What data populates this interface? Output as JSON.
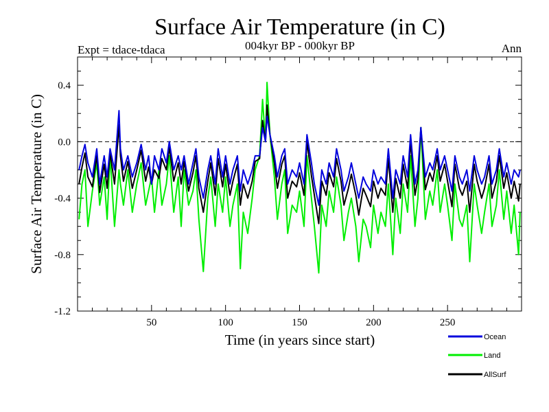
{
  "chart_data": {
    "type": "line",
    "title": "Surface Air Temperature (in C)",
    "subtitle": "004kyr BP - 000kyr BP",
    "left_label": "Expt = tdace-tdaca",
    "right_label": "Ann",
    "xlabel": "Time (in years since start)",
    "ylabel": "Surface Air Temperature (in C)",
    "xlim": [
      0,
      300
    ],
    "ylim": [
      -1.2,
      0.6
    ],
    "xticks_major": [
      50,
      100,
      150,
      200,
      250
    ],
    "xtick_labels": [
      "50",
      "100",
      "150",
      "200",
      "250"
    ],
    "yticks_major": [
      -1.2,
      -0.8,
      -0.4,
      0.0,
      0.4
    ],
    "ytick_labels": [
      "-1.2",
      "-0.8",
      "-0.4",
      "0.0",
      "0.4"
    ],
    "reference_line": 0.0,
    "legend_position": "bottom-right, below plot",
    "series": [
      {
        "name": "Ocean",
        "color": "#0000dd",
        "x": [
          1,
          3,
          5,
          7,
          10,
          13,
          15,
          18,
          20,
          22,
          25,
          28,
          29,
          31,
          34,
          37,
          40,
          43,
          46,
          48,
          50,
          52,
          55,
          57,
          60,
          62,
          65,
          68,
          70,
          72,
          75,
          78,
          80,
          82,
          85,
          88,
          90,
          93,
          95,
          98,
          100,
          103,
          105,
          108,
          110,
          112,
          115,
          118,
          120,
          123,
          125,
          127,
          128,
          130,
          133,
          135,
          138,
          140,
          142,
          145,
          148,
          150,
          153,
          155,
          158,
          160,
          163,
          165,
          168,
          170,
          173,
          175,
          178,
          180,
          183,
          185,
          188,
          190,
          193,
          195,
          198,
          200,
          203,
          205,
          208,
          210,
          213,
          215,
          218,
          220,
          223,
          225,
          228,
          230,
          232,
          235,
          238,
          240,
          243,
          245,
          248,
          250,
          253,
          255,
          258,
          260,
          263,
          265,
          268,
          270,
          273,
          275,
          278,
          280,
          283,
          285,
          288,
          290,
          293,
          295,
          298,
          299
        ],
        "values": [
          -0.2,
          -0.1,
          -0.02,
          -0.15,
          -0.25,
          -0.05,
          -0.3,
          -0.1,
          -0.25,
          -0.05,
          -0.2,
          0.22,
          -0.05,
          -0.2,
          -0.1,
          -0.25,
          -0.15,
          -0.02,
          -0.2,
          -0.1,
          -0.3,
          -0.1,
          -0.2,
          -0.05,
          -0.15,
          0.0,
          -0.2,
          -0.1,
          -0.2,
          -0.1,
          -0.3,
          -0.15,
          -0.05,
          -0.25,
          -0.4,
          -0.2,
          -0.1,
          -0.3,
          -0.05,
          -0.25,
          -0.1,
          -0.3,
          -0.2,
          -0.1,
          -0.35,
          -0.2,
          -0.3,
          -0.2,
          -0.1,
          -0.1,
          0.1,
          0.0,
          0.18,
          0.05,
          -0.1,
          -0.25,
          -0.1,
          -0.05,
          -0.3,
          -0.2,
          -0.25,
          -0.15,
          -0.3,
          0.05,
          -0.15,
          -0.3,
          -0.45,
          -0.2,
          -0.3,
          -0.15,
          -0.25,
          -0.05,
          -0.2,
          -0.35,
          -0.25,
          -0.15,
          -0.3,
          -0.4,
          -0.25,
          -0.3,
          -0.35,
          -0.2,
          -0.3,
          -0.25,
          -0.3,
          -0.05,
          -0.4,
          -0.2,
          -0.3,
          -0.1,
          -0.25,
          0.05,
          -0.3,
          -0.2,
          0.1,
          -0.25,
          -0.15,
          -0.2,
          -0.05,
          -0.2,
          -0.1,
          -0.2,
          -0.35,
          -0.1,
          -0.25,
          -0.3,
          -0.2,
          -0.35,
          -0.1,
          -0.2,
          -0.3,
          -0.25,
          -0.1,
          -0.3,
          -0.2,
          -0.05,
          -0.25,
          -0.15,
          -0.3,
          -0.2,
          -0.25,
          -0.2
        ]
      },
      {
        "name": "Land",
        "color": "#00ee00",
        "x": [
          1,
          3,
          5,
          7,
          10,
          13,
          15,
          18,
          20,
          22,
          25,
          28,
          29,
          31,
          34,
          37,
          40,
          43,
          46,
          48,
          50,
          52,
          55,
          57,
          60,
          62,
          65,
          68,
          70,
          72,
          75,
          78,
          80,
          82,
          85,
          88,
          90,
          93,
          95,
          98,
          100,
          103,
          105,
          108,
          110,
          112,
          115,
          118,
          120,
          123,
          125,
          127,
          128,
          130,
          133,
          135,
          138,
          140,
          142,
          145,
          148,
          150,
          153,
          155,
          158,
          160,
          163,
          165,
          168,
          170,
          173,
          175,
          178,
          180,
          183,
          185,
          188,
          190,
          193,
          195,
          198,
          200,
          203,
          205,
          208,
          210,
          213,
          215,
          218,
          220,
          223,
          225,
          228,
          230,
          232,
          235,
          238,
          240,
          243,
          245,
          248,
          250,
          253,
          255,
          258,
          260,
          263,
          265,
          268,
          270,
          273,
          275,
          278,
          280,
          283,
          285,
          288,
          290,
          293,
          295,
          298,
          299
        ],
        "values": [
          -0.55,
          -0.3,
          -0.2,
          -0.6,
          -0.35,
          -0.15,
          -0.45,
          -0.25,
          -0.55,
          -0.1,
          -0.6,
          -0.2,
          -0.3,
          -0.45,
          -0.2,
          -0.5,
          -0.3,
          -0.15,
          -0.45,
          -0.35,
          -0.25,
          -0.5,
          -0.2,
          -0.45,
          -0.3,
          -0.1,
          -0.5,
          -0.25,
          -0.6,
          -0.2,
          -0.45,
          -0.35,
          -0.2,
          -0.55,
          -0.92,
          -0.4,
          -0.25,
          -0.6,
          -0.3,
          -0.5,
          -0.25,
          -0.6,
          -0.45,
          -0.3,
          -0.9,
          -0.5,
          -0.65,
          -0.4,
          -0.2,
          -0.1,
          0.3,
          0.0,
          0.42,
          0.05,
          -0.25,
          -0.55,
          -0.3,
          -0.2,
          -0.65,
          -0.45,
          -0.5,
          -0.35,
          -0.6,
          -0.1,
          -0.4,
          -0.6,
          -0.93,
          -0.45,
          -0.6,
          -0.35,
          -0.5,
          -0.25,
          -0.45,
          -0.7,
          -0.5,
          -0.4,
          -0.6,
          -0.85,
          -0.55,
          -0.6,
          -0.75,
          -0.45,
          -0.65,
          -0.5,
          -0.6,
          -0.3,
          -0.8,
          -0.4,
          -0.65,
          -0.3,
          -0.5,
          -0.1,
          -0.6,
          -0.4,
          0.1,
          -0.55,
          -0.35,
          -0.45,
          -0.2,
          -0.5,
          -0.3,
          -0.45,
          -0.7,
          -0.3,
          -0.55,
          -0.6,
          -0.45,
          -0.85,
          -0.3,
          -0.45,
          -0.65,
          -0.5,
          -0.3,
          -0.6,
          -0.45,
          -0.2,
          -0.55,
          -0.35,
          -0.65,
          -0.45,
          -0.8,
          -0.5
        ]
      },
      {
        "name": "AllSurf",
        "color": "#000000",
        "x": [
          1,
          3,
          5,
          7,
          10,
          13,
          15,
          18,
          20,
          22,
          25,
          28,
          29,
          31,
          34,
          37,
          40,
          43,
          46,
          48,
          50,
          52,
          55,
          57,
          60,
          62,
          65,
          68,
          70,
          72,
          75,
          78,
          80,
          82,
          85,
          88,
          90,
          93,
          95,
          98,
          100,
          103,
          105,
          108,
          110,
          112,
          115,
          118,
          120,
          123,
          125,
          127,
          128,
          130,
          133,
          135,
          138,
          140,
          142,
          145,
          148,
          150,
          153,
          155,
          158,
          160,
          163,
          165,
          168,
          170,
          173,
          175,
          178,
          180,
          183,
          185,
          188,
          190,
          193,
          195,
          198,
          200,
          203,
          205,
          208,
          210,
          213,
          215,
          218,
          220,
          223,
          225,
          228,
          230,
          232,
          235,
          238,
          240,
          243,
          245,
          248,
          250,
          253,
          255,
          258,
          260,
          263,
          265,
          268,
          270,
          273,
          275,
          278,
          280,
          283,
          285,
          288,
          290,
          293,
          295,
          298,
          299
        ],
        "values": [
          -0.3,
          -0.18,
          -0.08,
          -0.25,
          -0.32,
          -0.1,
          -0.36,
          -0.16,
          -0.33,
          -0.08,
          -0.3,
          0.12,
          -0.1,
          -0.28,
          -0.14,
          -0.33,
          -0.2,
          -0.06,
          -0.28,
          -0.18,
          -0.3,
          -0.2,
          -0.26,
          -0.12,
          -0.2,
          -0.04,
          -0.28,
          -0.15,
          -0.3,
          -0.14,
          -0.35,
          -0.22,
          -0.1,
          -0.33,
          -0.5,
          -0.28,
          -0.15,
          -0.38,
          -0.12,
          -0.32,
          -0.16,
          -0.38,
          -0.28,
          -0.16,
          -0.45,
          -0.3,
          -0.4,
          -0.28,
          -0.14,
          -0.12,
          0.15,
          0.0,
          0.26,
          0.05,
          -0.15,
          -0.33,
          -0.16,
          -0.1,
          -0.4,
          -0.28,
          -0.32,
          -0.22,
          -0.38,
          0.0,
          -0.24,
          -0.38,
          -0.58,
          -0.28,
          -0.38,
          -0.22,
          -0.32,
          -0.12,
          -0.28,
          -0.45,
          -0.33,
          -0.23,
          -0.38,
          -0.52,
          -0.33,
          -0.38,
          -0.46,
          -0.28,
          -0.4,
          -0.33,
          -0.38,
          -0.12,
          -0.5,
          -0.26,
          -0.4,
          -0.16,
          -0.33,
          0.0,
          -0.38,
          -0.26,
          0.1,
          -0.34,
          -0.22,
          -0.28,
          -0.1,
          -0.28,
          -0.16,
          -0.28,
          -0.46,
          -0.16,
          -0.33,
          -0.38,
          -0.28,
          -0.5,
          -0.16,
          -0.28,
          -0.4,
          -0.33,
          -0.16,
          -0.4,
          -0.28,
          -0.1,
          -0.33,
          -0.22,
          -0.4,
          -0.28,
          -0.42,
          -0.3
        ]
      }
    ]
  }
}
